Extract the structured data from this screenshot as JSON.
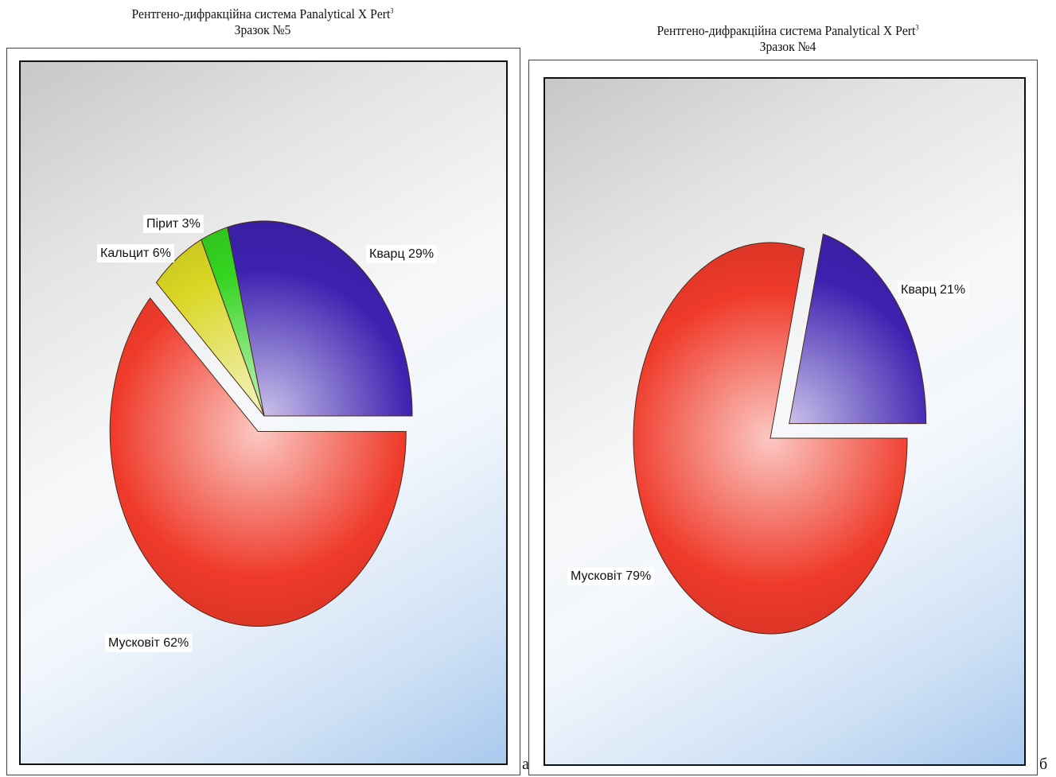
{
  "chart_data": [
    {
      "type": "pie",
      "title": "Рентгено-дифракційна система Panalytical X Pert",
      "title_superscript": "3",
      "subtitle": "Зразок №5",
      "panel_letter": "а",
      "slices": [
        {
          "name": "Кварц",
          "value": 29,
          "label": "Кварц 29%",
          "color": "#3d22b0",
          "exploded": false
        },
        {
          "name": "Пірит",
          "value": 3,
          "label": "Пірит 3%",
          "color": "#34d420",
          "exploded": false
        },
        {
          "name": "Кальцит",
          "value": 6,
          "label": "Кальцит 6%",
          "color": "#d9d624",
          "exploded": false
        },
        {
          "name": "Мусковіт",
          "value": 62,
          "label": "Мусковіт 62%",
          "color": "#ef3a2a",
          "exploded": true
        }
      ]
    },
    {
      "type": "pie",
      "title": "Рентгено-дифракційна система Panalytical X Pert",
      "title_superscript": "3",
      "subtitle": "Зразок №4",
      "panel_letter": "б",
      "slices": [
        {
          "name": "Кварц",
          "value": 21,
          "label": "Кварц 21%",
          "color": "#3d22b0",
          "exploded": true
        },
        {
          "name": "Мусковіт",
          "value": 79,
          "label": "Мусковіт 79%",
          "color": "#ef3a2a",
          "exploded": false
        }
      ]
    }
  ]
}
